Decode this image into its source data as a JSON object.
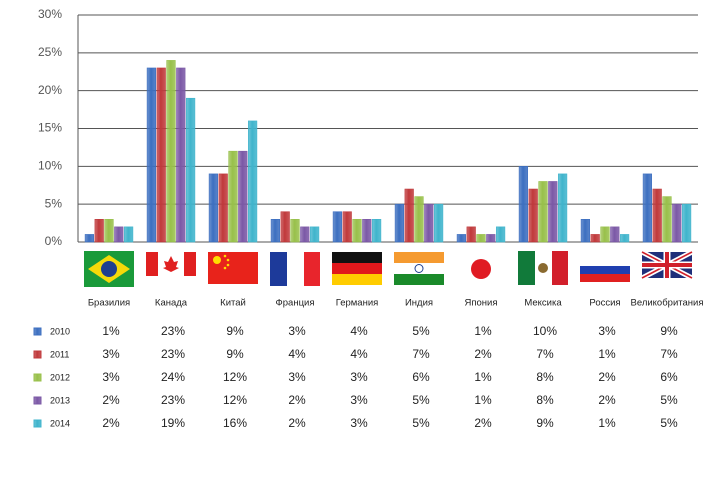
{
  "chart_data": {
    "type": "bar",
    "categories": [
      "Бразилия",
      "Канада",
      "Китай",
      "Франция",
      "Германия",
      "Индия",
      "Япония",
      "Мексика",
      "Россия",
      "Великобритания"
    ],
    "series": [
      {
        "name": "2010",
        "color": "#3c6fc0",
        "values": [
          1,
          23,
          9,
          3,
          4,
          5,
          1,
          10,
          3,
          9
        ],
        "value_labels": [
          "1%",
          "23%",
          "9%",
          "3%",
          "4%",
          "5%",
          "1%",
          "10%",
          "3%",
          "9%"
        ]
      },
      {
        "name": "2011",
        "color": "#c0393b",
        "values": [
          3,
          23,
          9,
          4,
          4,
          7,
          2,
          7,
          1,
          7
        ],
        "value_labels": [
          "3%",
          "23%",
          "9%",
          "4%",
          "4%",
          "7%",
          "2%",
          "7%",
          "1%",
          "7%"
        ]
      },
      {
        "name": "2012",
        "color": "#98c04a",
        "values": [
          3,
          24,
          12,
          3,
          3,
          6,
          1,
          8,
          2,
          6
        ],
        "value_labels": [
          "3%",
          "24%",
          "12%",
          "3%",
          "3%",
          "6%",
          "1%",
          "8%",
          "2%",
          "6%"
        ]
      },
      {
        "name": "2013",
        "color": "#7b58a6",
        "values": [
          2,
          23,
          12,
          2,
          3,
          5,
          1,
          8,
          2,
          5
        ],
        "value_labels": [
          "2%",
          "23%",
          "12%",
          "2%",
          "3%",
          "5%",
          "1%",
          "8%",
          "2%",
          "5%"
        ]
      },
      {
        "name": "2014",
        "color": "#3fb4cc",
        "values": [
          2,
          19,
          16,
          2,
          3,
          5,
          2,
          9,
          1,
          5
        ],
        "value_labels": [
          "2%",
          "19%",
          "16%",
          "2%",
          "3%",
          "5%",
          "2%",
          "9%",
          "1%",
          "5%"
        ]
      }
    ],
    "ylim": [
      0,
      30
    ],
    "yticks": [
      {
        "value": 0,
        "label": "0%"
      },
      {
        "value": 5,
        "label": "5%"
      },
      {
        "value": 10,
        "label": "10%"
      },
      {
        "value": 15,
        "label": "15%"
      },
      {
        "value": 20,
        "label": "20%"
      },
      {
        "value": 25,
        "label": "25%"
      },
      {
        "value": 30,
        "label": "30%"
      }
    ],
    "grid": true
  }
}
